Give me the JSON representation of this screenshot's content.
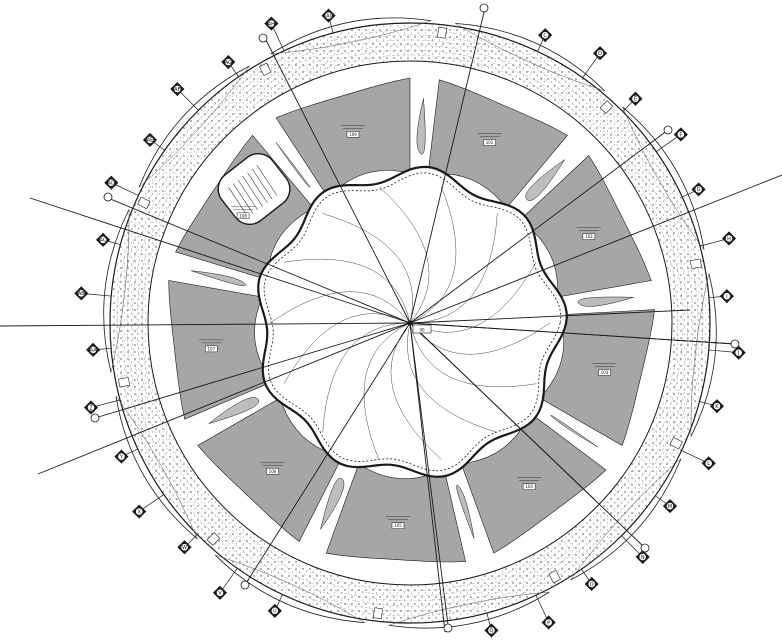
{
  "drawing": {
    "subject": "circular building plan",
    "colors": {
      "ink": "#1a1a1a",
      "gray_zone": "#a6a6a6",
      "paper": "#ffffff",
      "ring_fill": "#dcdcdc"
    },
    "grid_bubble_labels": [
      "A",
      "B",
      "C",
      "D",
      "E",
      "F",
      "G",
      "H",
      "I",
      "J",
      "K",
      "L",
      "M",
      "N",
      "O",
      "P",
      "Q",
      "R",
      "S",
      "T",
      "U",
      "V",
      "W",
      "X",
      "Y",
      "Z",
      "AA",
      "AB",
      "AC",
      "AD",
      "AE",
      "AF",
      "AG",
      "AH",
      "AI",
      "AJ"
    ],
    "room_tags": [
      "101",
      "102",
      "103",
      "104",
      "105",
      "106",
      "107",
      "108",
      "109"
    ],
    "center_tag": "00"
  }
}
